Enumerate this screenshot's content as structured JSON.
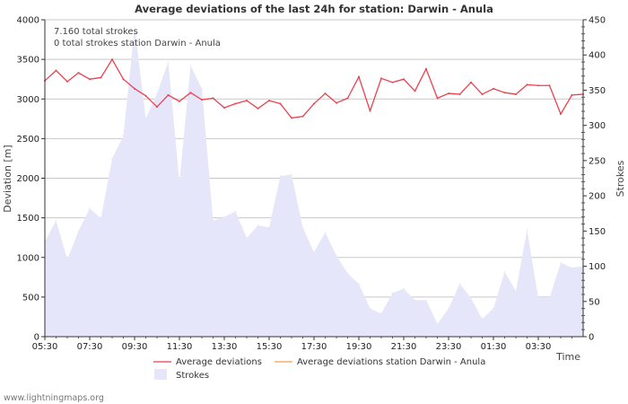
{
  "chart_data": {
    "type": "line",
    "title": "Average deviations of the last 24h for station: Darwin - Anula",
    "xlabel": "Time",
    "ylabel": "Deviation  [m]",
    "y2label": "Strokes",
    "ylim": [
      0,
      4000
    ],
    "y2lim": [
      0,
      450
    ],
    "yticks": [
      0,
      500,
      1000,
      1500,
      2000,
      2500,
      3000,
      3500,
      4000
    ],
    "y2ticks": [
      0,
      50,
      100,
      150,
      200,
      250,
      300,
      350,
      400,
      450
    ],
    "xticks": [
      "05:30",
      "07:30",
      "09:30",
      "11:30",
      "13:30",
      "15:30",
      "17:30",
      "19:30",
      "21:30",
      "23:30",
      "01:30",
      "03:30"
    ],
    "info_lines": [
      "7.160 total strokes",
      "0 total strokes station Darwin - Anula"
    ],
    "legend": {
      "avg": "Average deviations",
      "station": "Average deviations station Darwin - Anula",
      "strokes": "Strokes"
    },
    "colors": {
      "avg": "#e8424f",
      "station": "#f5a04a",
      "strokes_fill": "#e6e6fa",
      "grid": "#c8c8c8"
    },
    "series": [
      {
        "name": "Average deviations",
        "axis": "left",
        "x": [
          0,
          0.5,
          1,
          1.5,
          2,
          2.5,
          3,
          3.5,
          4,
          4.5,
          5,
          5.5,
          6,
          6.5,
          7,
          7.5,
          8,
          8.5,
          9,
          9.5,
          10,
          10.5,
          11,
          11.5,
          12,
          12.5,
          13,
          13.5,
          14,
          14.5,
          15,
          15.5,
          16,
          16.5,
          17,
          17.5,
          18,
          18.5,
          19,
          19.5,
          20,
          20.5,
          21,
          21.5,
          22,
          22.5,
          23,
          23.5,
          24
        ],
        "values": [
          3230,
          3360,
          3220,
          3330,
          3250,
          3270,
          3500,
          3250,
          3130,
          3040,
          2900,
          3050,
          2970,
          3080,
          2990,
          3010,
          2890,
          2940,
          2980,
          2880,
          2980,
          2940,
          2760,
          2780,
          2940,
          3070,
          2950,
          3010,
          3280,
          2850,
          3260,
          3210,
          3250,
          3100,
          3380,
          3010,
          3070,
          3060,
          3210,
          3060,
          3130,
          3080,
          3060,
          3180,
          3170,
          3170,
          2810,
          3050,
          3060
        ]
      },
      {
        "name": "Average deviations station Darwin - Anula",
        "axis": "left",
        "x": [],
        "values": []
      },
      {
        "name": "Strokes",
        "axis": "right",
        "type": "area",
        "x": [
          0,
          0.5,
          1,
          1.5,
          2,
          2.5,
          3,
          3.5,
          4,
          4.5,
          5,
          5.5,
          6,
          6.5,
          7,
          7.5,
          8,
          8.5,
          9,
          9.5,
          10,
          10.5,
          11,
          11.5,
          12,
          12.5,
          13,
          13.5,
          14,
          14.5,
          15,
          15.5,
          16,
          16.5,
          17,
          17.5,
          18,
          18.5,
          19,
          19.5,
          20,
          20.5,
          21,
          21.5,
          22,
          22.5,
          23,
          23.5,
          24
        ],
        "values": [
          135,
          165,
          110,
          150,
          182,
          168,
          253,
          285,
          440,
          310,
          345,
          390,
          220,
          385,
          352,
          165,
          170,
          178,
          140,
          158,
          155,
          228,
          230,
          155,
          120,
          148,
          115,
          90,
          75,
          40,
          33,
          62,
          68,
          52,
          52,
          18,
          40,
          75,
          55,
          25,
          40,
          92,
          65,
          152,
          55,
          55,
          105,
          98,
          100
        ]
      }
    ]
  },
  "footer": "www.lightningmaps.org"
}
